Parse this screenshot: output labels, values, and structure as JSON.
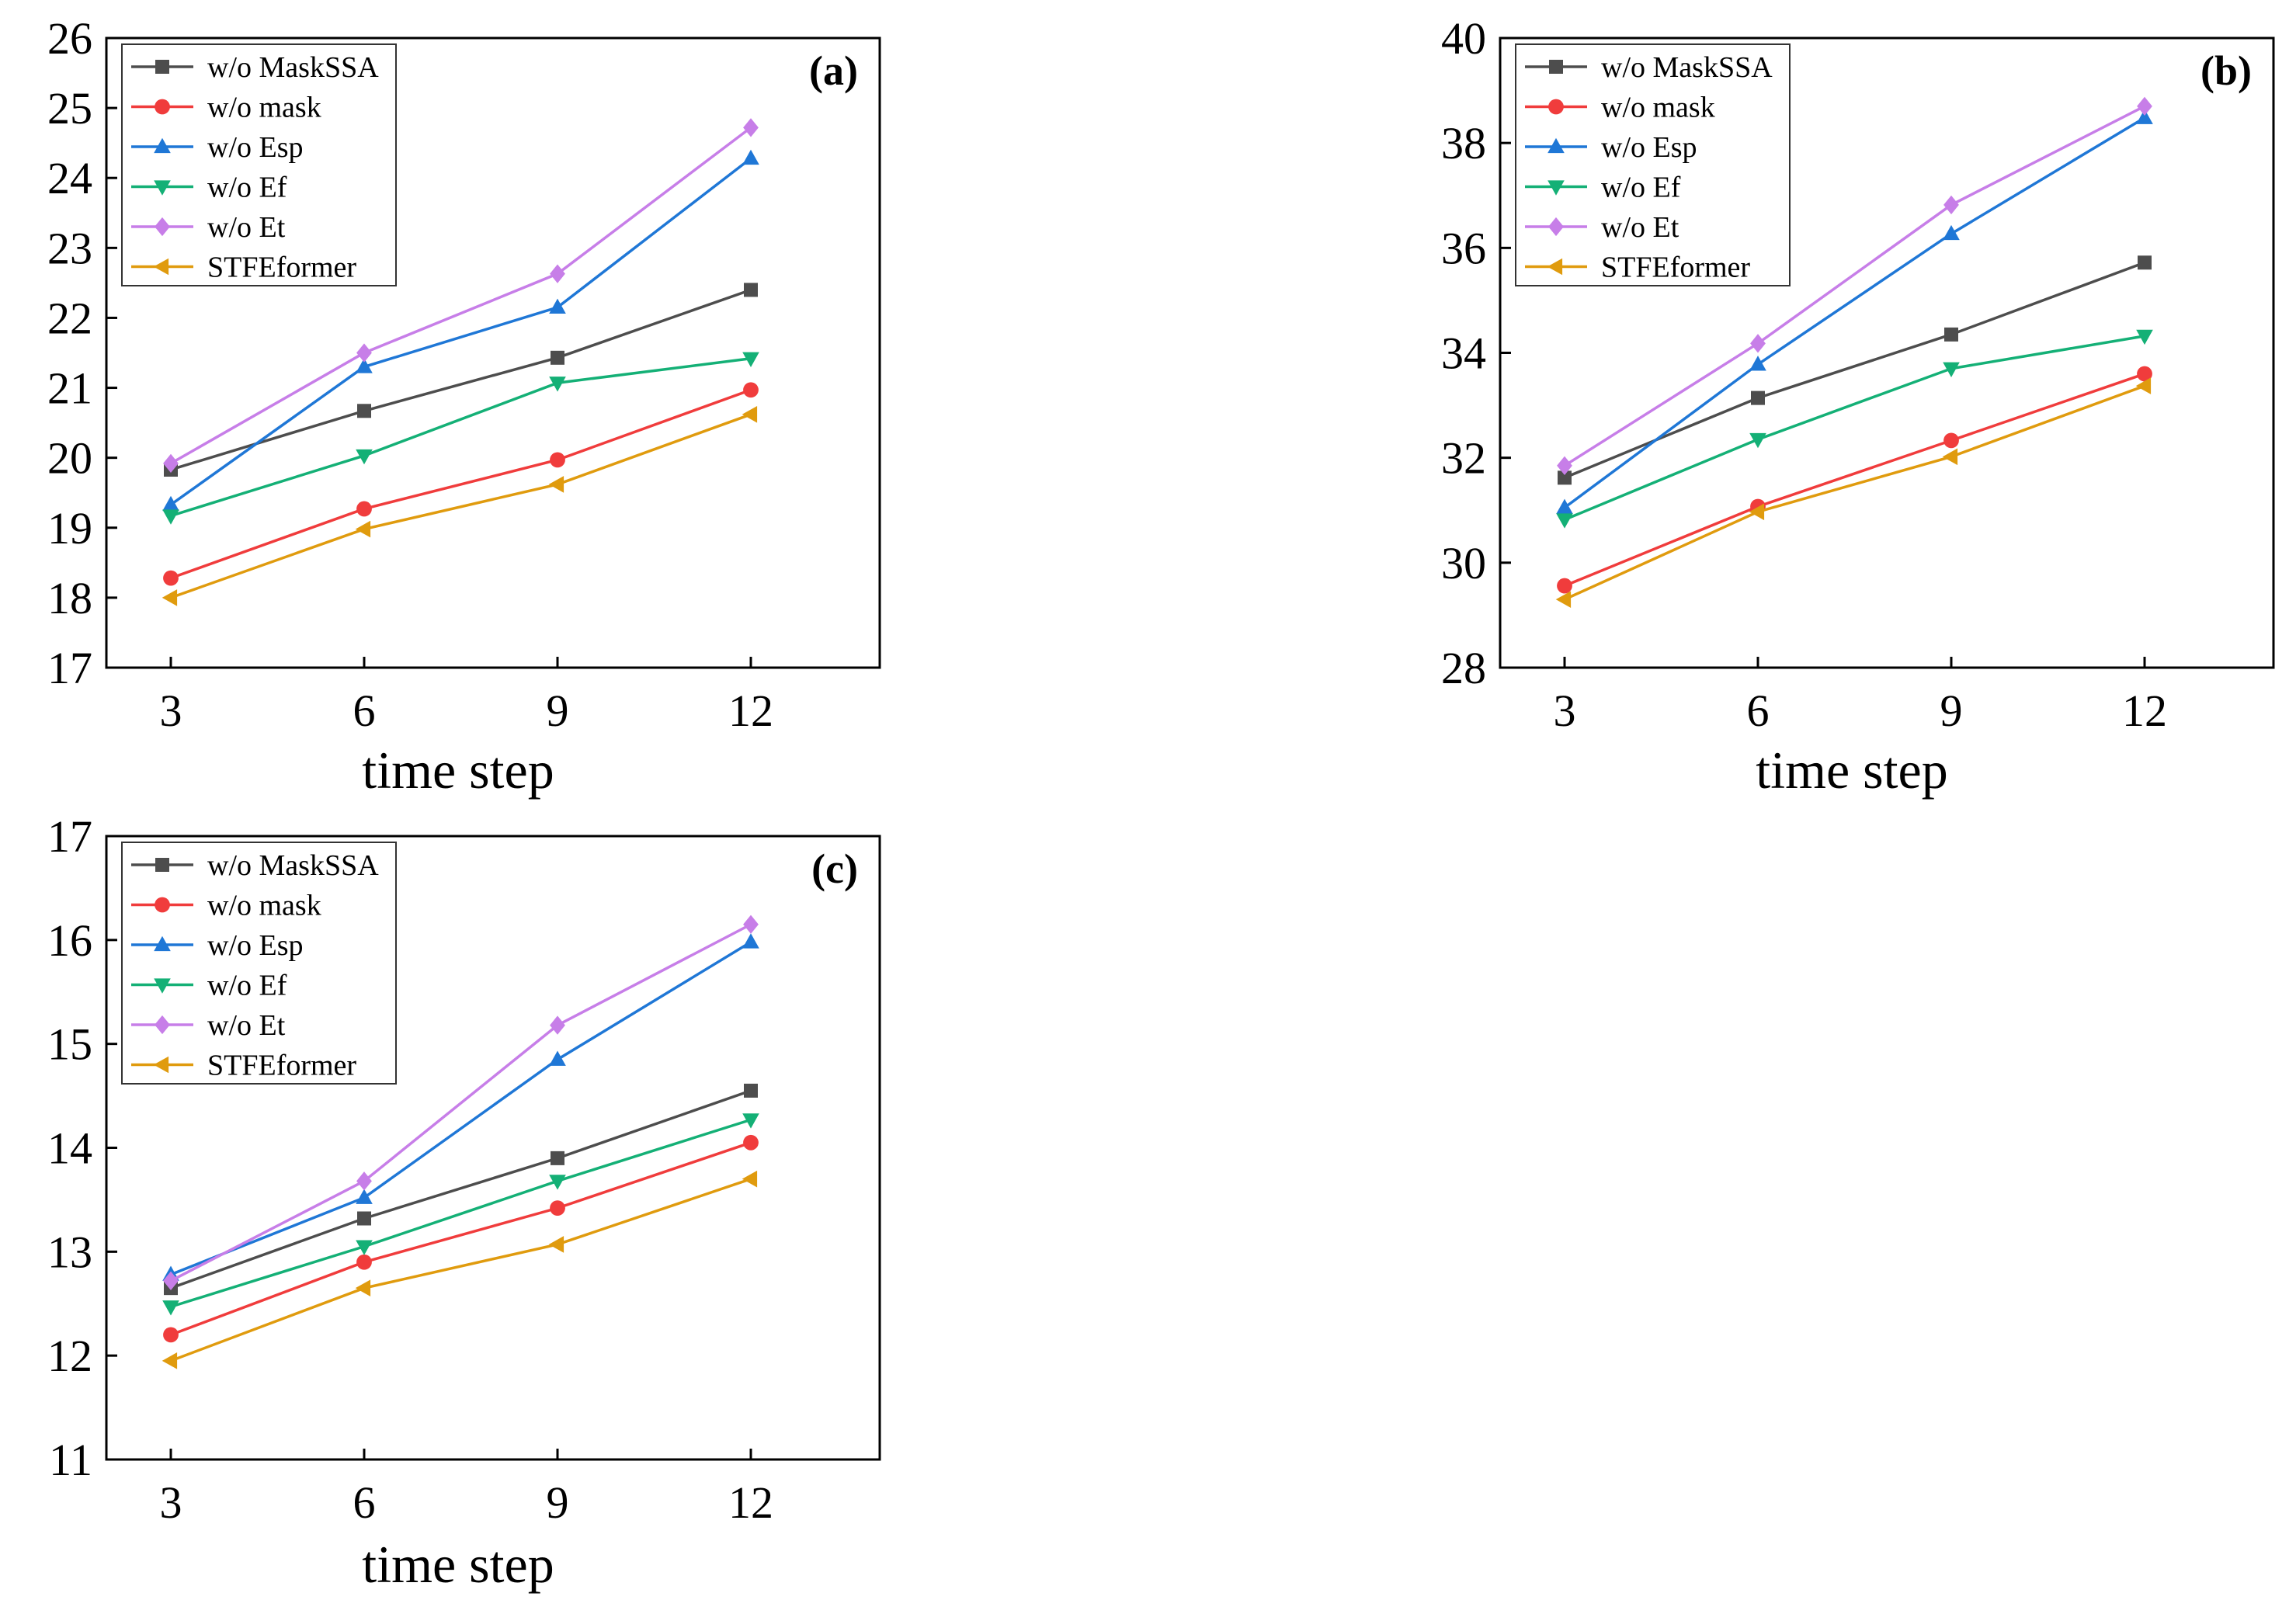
{
  "series_styles": [
    {
      "name": "w/o MaskSSA",
      "color": "#4d4d4d",
      "marker": "square"
    },
    {
      "name": "w/o mask",
      "color": "#f03c3c",
      "marker": "circle"
    },
    {
      "name": "w/o Esp",
      "color": "#1f77d6",
      "marker": "triangle-up"
    },
    {
      "name": "w/o Ef",
      "color": "#14b076",
      "marker": "triangle-down"
    },
    {
      "name": "w/o Et",
      "color": "#c77ee8",
      "marker": "diamond"
    },
    {
      "name": "STFEformer",
      "color": "#e09b0e",
      "marker": "triangle-left"
    }
  ],
  "chart_data": [
    {
      "type": "line",
      "panel_label": "(a)",
      "xlabel": "time step",
      "ylabel": "",
      "x": [
        3,
        6,
        9,
        12
      ],
      "x_ticks": [
        "3",
        "6",
        "9",
        "12"
      ],
      "xlim": [
        2,
        14
      ],
      "ylim": [
        17,
        26
      ],
      "y_ticks": [
        "17",
        "18",
        "19",
        "20",
        "21",
        "22",
        "23",
        "24",
        "25",
        "26"
      ],
      "legend_position": "top-left",
      "series": [
        {
          "name": "w/o MaskSSA",
          "values": [
            19.83,
            20.67,
            21.43,
            22.4
          ]
        },
        {
          "name": "w/o mask",
          "values": [
            18.28,
            19.27,
            19.97,
            20.97
          ]
        },
        {
          "name": "w/o Esp",
          "values": [
            19.33,
            21.3,
            22.15,
            24.28
          ]
        },
        {
          "name": "w/o Ef",
          "values": [
            19.17,
            20.03,
            21.07,
            21.42
          ]
        },
        {
          "name": "w/o Et",
          "values": [
            19.92,
            21.5,
            22.63,
            24.72
          ]
        },
        {
          "name": "STFEformer",
          "values": [
            18.0,
            18.98,
            19.62,
            20.62
          ]
        }
      ]
    },
    {
      "type": "line",
      "panel_label": "(b)",
      "xlabel": "time step",
      "ylabel": "",
      "x": [
        3,
        6,
        9,
        12
      ],
      "x_ticks": [
        "3",
        "6",
        "9",
        "12"
      ],
      "xlim": [
        2,
        14
      ],
      "ylim": [
        28,
        40
      ],
      "y_ticks": [
        "28",
        "30",
        "32",
        "34",
        "36",
        "38",
        "40"
      ],
      "legend_position": "top-left",
      "series": [
        {
          "name": "w/o MaskSSA",
          "values": [
            31.62,
            33.14,
            34.35,
            35.72
          ]
        },
        {
          "name": "w/o mask",
          "values": [
            29.56,
            31.07,
            32.33,
            33.6
          ]
        },
        {
          "name": "w/o Esp",
          "values": [
            31.05,
            33.78,
            36.27,
            38.48
          ]
        },
        {
          "name": "w/o Ef",
          "values": [
            30.82,
            32.35,
            33.7,
            34.32
          ]
        },
        {
          "name": "w/o Et",
          "values": [
            31.85,
            34.18,
            36.82,
            38.7
          ]
        },
        {
          "name": "STFEformer",
          "values": [
            29.3,
            30.97,
            32.02,
            33.37
          ]
        }
      ]
    },
    {
      "type": "line",
      "panel_label": "(c)",
      "xlabel": "time step",
      "ylabel": "",
      "x": [
        3,
        6,
        9,
        12
      ],
      "x_ticks": [
        "3",
        "6",
        "9",
        "12"
      ],
      "xlim": [
        2,
        14
      ],
      "ylim": [
        11,
        17
      ],
      "y_ticks": [
        "11",
        "12",
        "13",
        "14",
        "15",
        "16",
        "17"
      ],
      "legend_position": "top-left",
      "series": [
        {
          "name": "w/o MaskSSA",
          "values": [
            12.65,
            13.32,
            13.9,
            14.55
          ]
        },
        {
          "name": "w/o mask",
          "values": [
            12.2,
            12.9,
            13.42,
            14.05
          ]
        },
        {
          "name": "w/o Esp",
          "values": [
            12.78,
            13.52,
            14.85,
            15.98
          ]
        },
        {
          "name": "w/o Ef",
          "values": [
            12.47,
            13.05,
            13.68,
            14.27
          ]
        },
        {
          "name": "w/o Et",
          "values": [
            12.72,
            13.68,
            15.18,
            16.15
          ]
        },
        {
          "name": "STFEformer",
          "values": [
            11.95,
            12.65,
            13.07,
            13.7
          ]
        }
      ]
    }
  ]
}
